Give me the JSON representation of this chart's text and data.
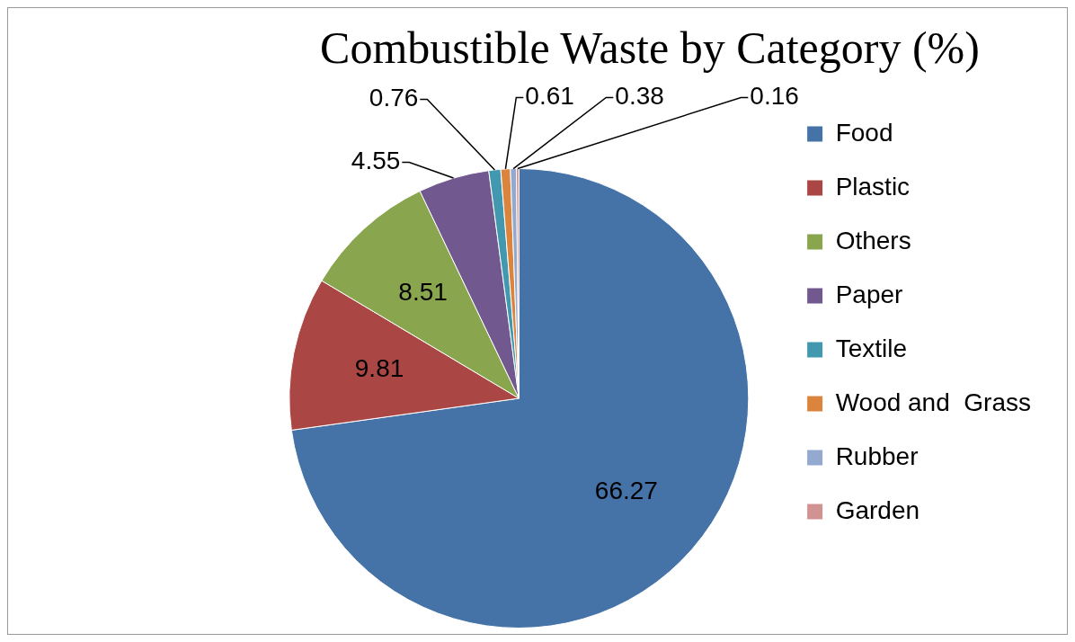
{
  "chart_data": {
    "type": "pie",
    "title": "Combustible Waste by Category (%)",
    "categories": [
      "Food",
      "Plastic",
      "Others",
      "Paper",
      "Textile",
      "Wood and  Grass",
      "Rubber",
      "Garden"
    ],
    "values": [
      66.27,
      9.81,
      8.51,
      4.55,
      0.76,
      0.61,
      0.38,
      0.16
    ],
    "colors": [
      "#4572a7",
      "#aa4643",
      "#89a54e",
      "#71588f",
      "#4198af",
      "#db843d",
      "#93a9cf",
      "#d19392"
    ],
    "data_labels": true,
    "legend": "right"
  }
}
